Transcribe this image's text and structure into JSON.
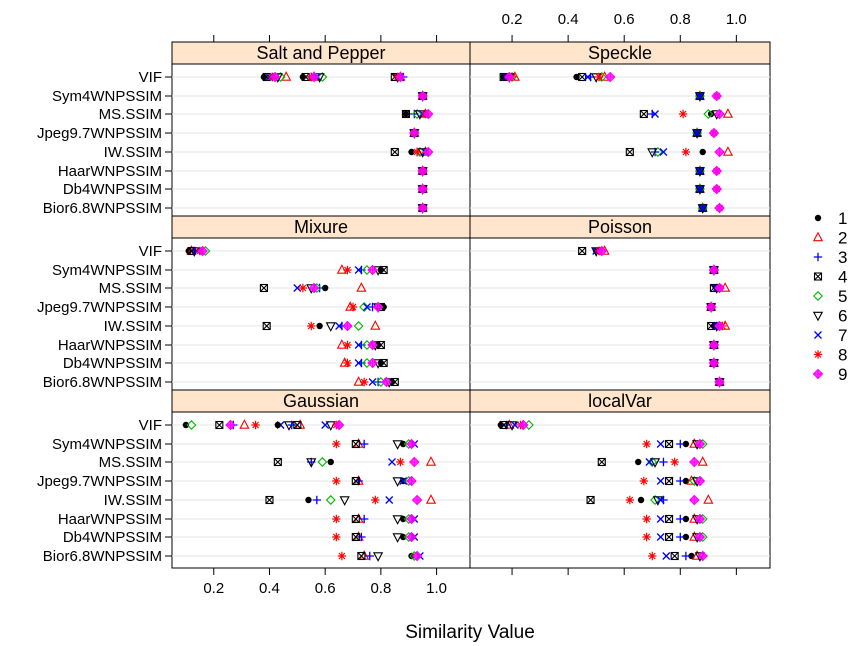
{
  "chart_data": {
    "type": "dotplot",
    "xlabel": "Similarity Value",
    "xlim": [
      0.05,
      1.12
    ],
    "x_ticks": [
      0.2,
      0.4,
      0.6,
      0.8,
      1.0
    ],
    "x_tick_labels": [
      "0.2",
      "0.4",
      "0.6",
      "0.8",
      "1.0"
    ],
    "categories": [
      "VIF",
      "Sym4WNPSSIM",
      "MS.SSIM",
      "Jpeg9.7WNPSSIM",
      "IW.SSIM",
      "HaarWNPSSIM",
      "Db4WNPSSIM",
      "Bior6.8WNPSSIM"
    ],
    "legend": {
      "placement": "right",
      "entries": [
        {
          "label": "1",
          "color": "#000000",
          "symbol": "dot"
        },
        {
          "label": "2",
          "color": "#ff0000",
          "symbol": "triangle"
        },
        {
          "label": "3",
          "color": "#0000ff",
          "symbol": "plus"
        },
        {
          "label": "4",
          "color": "#000000",
          "symbol": "boxx"
        },
        {
          "label": "5",
          "color": "#00bb00",
          "symbol": "diamond"
        },
        {
          "label": "6",
          "color": "#000000",
          "symbol": "tridown"
        },
        {
          "label": "7",
          "color": "#0000ff",
          "symbol": "cross"
        },
        {
          "label": "8",
          "color": "#ff0000",
          "symbol": "star"
        },
        {
          "label": "9",
          "color": "#ff00ff",
          "symbol": "diamondfill"
        }
      ]
    },
    "panels": [
      {
        "title": "Salt and Pepper",
        "rows": [
          [
            0.38,
            0.46,
            0.41,
            0.39,
            0.44,
            0.43,
            0.4,
            0.41,
            0.42,
            0.52,
            0.56,
            0.55,
            0.53,
            0.59,
            0.58,
            0.57,
            0.55,
            0.56,
            0.86,
            0.87,
            0.88,
            0.85,
            0.87,
            0.86,
            0.87,
            0.86,
            0.87
          ],
          [
            0.95,
            0.95,
            0.95,
            0.95,
            0.95,
            0.95,
            0.95,
            0.95,
            0.95
          ],
          [
            0.89,
            0.96,
            0.92,
            0.89,
            0.93,
            0.94,
            0.95,
            0.96,
            0.97
          ],
          [
            0.92,
            0.92,
            0.92,
            0.92,
            0.92,
            0.92,
            0.92,
            0.92,
            0.92
          ],
          [
            0.91,
            0.96,
            0.93,
            0.85,
            0.94,
            0.95,
            0.96,
            0.93,
            0.97
          ],
          [
            0.95,
            0.95,
            0.95,
            0.95,
            0.95,
            0.95,
            0.95,
            0.95,
            0.95
          ],
          [
            0.95,
            0.95,
            0.95,
            0.95,
            0.95,
            0.95,
            0.95,
            0.95,
            0.95
          ],
          [
            0.95,
            0.95,
            0.95,
            0.95,
            0.95,
            0.95,
            0.95,
            0.95,
            0.95
          ]
        ]
      },
      {
        "title": "Speckle",
        "rows": [
          [
            0.17,
            0.21,
            0.19,
            0.17,
            0.2,
            0.19,
            0.18,
            0.2,
            0.19,
            0.43,
            0.53,
            0.48,
            0.45,
            0.52,
            0.5,
            0.47,
            0.51,
            0.55
          ],
          [
            0.87,
            0.87,
            0.87,
            0.87,
            0.87,
            0.87,
            0.87,
            0.93,
            0.93
          ],
          [
            0.91,
            0.97,
            0.7,
            0.67,
            0.9,
            0.93,
            0.71,
            0.81,
            0.94
          ],
          [
            0.86,
            0.86,
            0.86,
            0.86,
            0.86,
            0.86,
            0.86,
            0.92,
            0.92
          ],
          [
            0.88,
            0.97,
            0.71,
            0.62,
            0.72,
            0.7,
            0.74,
            0.82,
            0.94
          ],
          [
            0.87,
            0.87,
            0.87,
            0.87,
            0.87,
            0.87,
            0.87,
            0.93,
            0.93
          ],
          [
            0.87,
            0.87,
            0.87,
            0.87,
            0.87,
            0.87,
            0.87,
            0.93,
            0.93
          ],
          [
            0.88,
            0.88,
            0.88,
            0.88,
            0.88,
            0.88,
            0.88,
            0.94,
            0.94
          ]
        ]
      },
      {
        "title": "Mixure",
        "rows": [
          [
            0.11,
            0.12,
            0.13,
            0.12,
            0.17,
            0.13,
            0.14,
            0.15,
            0.16
          ],
          [
            0.8,
            0.66,
            0.73,
            0.81,
            0.75,
            0.79,
            0.72,
            0.68,
            0.77
          ],
          [
            0.6,
            0.73,
            0.58,
            0.38,
            0.57,
            0.55,
            0.5,
            0.52,
            0.56
          ],
          [
            0.81,
            0.69,
            0.77,
            0.8,
            0.74,
            0.79,
            0.75,
            0.7,
            0.79
          ],
          [
            0.58,
            0.78,
            0.66,
            0.39,
            0.72,
            0.62,
            0.65,
            0.55,
            0.68
          ],
          [
            0.79,
            0.66,
            0.73,
            0.8,
            0.75,
            0.78,
            0.72,
            0.68,
            0.77
          ],
          [
            0.8,
            0.67,
            0.73,
            0.81,
            0.75,
            0.79,
            0.72,
            0.68,
            0.77
          ],
          [
            0.84,
            0.72,
            0.79,
            0.85,
            0.8,
            0.83,
            0.77,
            0.74,
            0.82
          ]
        ]
      },
      {
        "title": "Poisson",
        "rows": [
          [
            0.5,
            0.53,
            0.51,
            0.45,
            0.52,
            0.5,
            0.5,
            0.51,
            0.52
          ],
          [
            0.92,
            0.92,
            0.92,
            0.92,
            0.92,
            0.92,
            0.92,
            0.92,
            0.92
          ],
          [
            0.93,
            0.96,
            0.93,
            0.92,
            0.94,
            0.93,
            0.93,
            0.94,
            0.94
          ],
          [
            0.91,
            0.91,
            0.91,
            0.91,
            0.91,
            0.91,
            0.91,
            0.91,
            0.91
          ],
          [
            0.92,
            0.96,
            0.93,
            0.91,
            0.94,
            0.93,
            0.93,
            0.95,
            0.94
          ],
          [
            0.92,
            0.92,
            0.92,
            0.92,
            0.92,
            0.92,
            0.92,
            0.92,
            0.92
          ],
          [
            0.92,
            0.92,
            0.92,
            0.92,
            0.92,
            0.92,
            0.92,
            0.92,
            0.92
          ],
          [
            0.94,
            0.94,
            0.94,
            0.94,
            0.94,
            0.94,
            0.94,
            0.94,
            0.94
          ]
        ]
      },
      {
        "title": "Gaussian",
        "rows": [
          [
            0.1,
            0.31,
            0.27,
            0.22,
            0.12,
            0.47,
            0.44,
            0.35,
            0.26,
            0.43,
            0.51,
            0.48,
            0.5,
            0.65,
            0.62,
            0.6,
            0.64,
            0.65
          ],
          [
            0.88,
            0.72,
            0.74,
            0.71,
            0.9,
            0.86,
            0.92,
            0.64,
            0.91
          ],
          [
            0.62,
            0.98,
            0.55,
            0.43,
            0.59,
            0.55,
            0.84,
            0.87,
            0.92
          ],
          [
            0.88,
            0.72,
            0.72,
            0.71,
            0.9,
            0.86,
            0.88,
            0.64,
            0.91
          ],
          [
            0.54,
            0.98,
            0.57,
            0.4,
            0.62,
            0.67,
            0.83,
            0.78,
            0.93
          ],
          [
            0.88,
            0.72,
            0.74,
            0.71,
            0.9,
            0.86,
            0.92,
            0.64,
            0.91
          ],
          [
            0.88,
            0.72,
            0.73,
            0.71,
            0.9,
            0.86,
            0.92,
            0.64,
            0.91
          ],
          [
            0.91,
            0.74,
            0.76,
            0.73,
            0.92,
            0.79,
            0.94,
            0.66,
            0.93
          ]
        ]
      },
      {
        "title": "localVar",
        "rows": [
          [
            0.16,
            0.19,
            0.18,
            0.17,
            0.26,
            0.2,
            0.21,
            0.23,
            0.24
          ],
          [
            0.82,
            0.85,
            0.8,
            0.76,
            0.88,
            0.86,
            0.73,
            0.68,
            0.87
          ],
          [
            0.65,
            0.88,
            0.74,
            0.52,
            0.7,
            0.71,
            0.69,
            0.78,
            0.85
          ],
          [
            0.82,
            0.84,
            0.8,
            0.76,
            0.85,
            0.86,
            0.73,
            0.67,
            0.87
          ],
          [
            0.66,
            0.9,
            0.74,
            0.48,
            0.71,
            0.72,
            0.73,
            0.62,
            0.85
          ],
          [
            0.82,
            0.85,
            0.8,
            0.76,
            0.88,
            0.86,
            0.73,
            0.68,
            0.87
          ],
          [
            0.82,
            0.85,
            0.8,
            0.76,
            0.88,
            0.86,
            0.73,
            0.68,
            0.87
          ],
          [
            0.84,
            0.86,
            0.82,
            0.78,
            0.88,
            0.87,
            0.75,
            0.7,
            0.88
          ]
        ]
      }
    ]
  }
}
